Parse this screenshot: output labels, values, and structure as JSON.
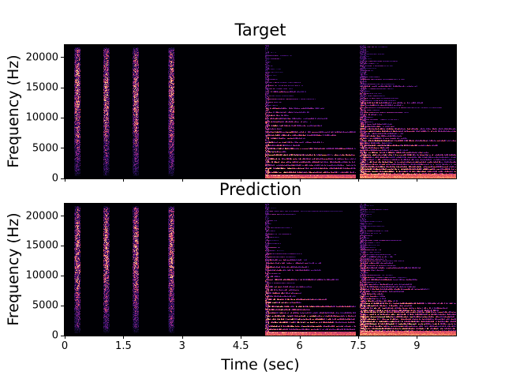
{
  "figure": {
    "background": "#ffffff",
    "text_color": "#000000"
  },
  "chart_data": [
    {
      "type": "heatmap",
      "subtype": "audio-spectrogram",
      "title": "Target",
      "xlabel": "",
      "ylabel": "Frequency (Hz)",
      "colormap": "magma",
      "background_color": "#000004",
      "x_range": [
        0,
        10
      ],
      "y_range": [
        0,
        22050
      ],
      "x_ticks": [
        0,
        1.5,
        3,
        4.5,
        6,
        7.5,
        9
      ],
      "x_tick_labels": [],
      "y_ticks": [
        0,
        5000,
        10000,
        15000,
        20000
      ],
      "y_tick_labels": [
        "0",
        "5000",
        "10000",
        "15000",
        "20000"
      ],
      "seed": 7,
      "events": [
        {
          "type": "noise_burst",
          "time": 0.32,
          "duration": 0.14,
          "f_min": 500,
          "f_max": 21600
        },
        {
          "type": "noise_burst",
          "time": 1.05,
          "duration": 0.14,
          "f_min": 500,
          "f_max": 21600
        },
        {
          "type": "noise_burst",
          "time": 1.81,
          "duration": 0.14,
          "f_min": 500,
          "f_max": 21600
        },
        {
          "type": "noise_burst",
          "time": 2.72,
          "duration": 0.14,
          "f_min": 500,
          "f_max": 21600
        },
        {
          "type": "note",
          "onset": 5.12,
          "end": 7.42,
          "attack": 0.1,
          "f0": 550,
          "sustain_harmonics": 7,
          "glow_fmax": 700,
          "glow": 0.8
        },
        {
          "type": "note",
          "onset": 7.55,
          "end": 10.0,
          "attack": 0.16,
          "f0": 390,
          "sustain_harmonics": 10,
          "glow_fmax": 750,
          "glow": 0.88
        }
      ]
    },
    {
      "type": "heatmap",
      "subtype": "audio-spectrogram",
      "title": "Prediction",
      "xlabel": "Time (sec)",
      "ylabel": "Frequency (Hz)",
      "colormap": "magma",
      "background_color": "#000004",
      "x_range": [
        0,
        10
      ],
      "y_range": [
        0,
        22050
      ],
      "x_ticks": [
        0,
        1.5,
        3,
        4.5,
        6,
        7.5,
        9
      ],
      "x_tick_labels": [
        "0",
        "1.5",
        "3",
        "4.5",
        "6",
        "7.5",
        "9"
      ],
      "y_ticks": [
        0,
        5000,
        10000,
        15000,
        20000
      ],
      "y_tick_labels": [
        "0",
        "5000",
        "10000",
        "15000",
        "20000"
      ],
      "seed": 13,
      "events": [
        {
          "type": "noise_burst",
          "time": 0.32,
          "duration": 0.14,
          "f_min": 500,
          "f_max": 21600
        },
        {
          "type": "noise_burst",
          "time": 1.05,
          "duration": 0.14,
          "f_min": 500,
          "f_max": 21600
        },
        {
          "type": "noise_burst",
          "time": 1.81,
          "duration": 0.14,
          "f_min": 500,
          "f_max": 21600
        },
        {
          "type": "noise_burst",
          "time": 2.72,
          "duration": 0.14,
          "f_min": 500,
          "f_max": 21600
        },
        {
          "type": "note",
          "onset": 5.12,
          "end": 7.42,
          "attack": 0.1,
          "f0": 550,
          "sustain_harmonics": 7,
          "glow_fmax": 700,
          "glow": 0.8
        },
        {
          "type": "note",
          "onset": 7.55,
          "end": 10.0,
          "attack": 0.16,
          "f0": 390,
          "sustain_harmonics": 10,
          "glow_fmax": 750,
          "glow": 0.88
        }
      ]
    }
  ]
}
